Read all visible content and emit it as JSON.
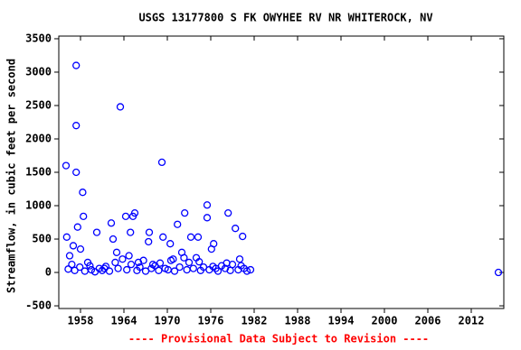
{
  "chart_data": {
    "type": "scatter",
    "title": "USGS 13177800 S FK OWYHEE RV NR WHITEROCK, NV",
    "y_label": "Streamflow, in cubic feet per second",
    "footer": "---- Provisional Data Subject to Revision ----",
    "color": "#0000ff",
    "xlim": [
      1955,
      2016.5
    ],
    "ylim": [
      -540,
      3540
    ],
    "xticks": [
      1958,
      1964,
      1970,
      1976,
      1982,
      1988,
      1994,
      2000,
      2006,
      2012
    ],
    "yticks": [
      -500,
      0,
      500,
      1000,
      1500,
      2000,
      2500,
      3000,
      3500
    ],
    "x": [
      1956.0,
      1957.4,
      1957.4,
      1957.4,
      1958.3,
      1963.5,
      1969.25,
      1958.4,
      1957.6,
      1956.1,
      1965.5,
      1965.25,
      1964.25,
      1962.25,
      1967.5,
      1969.4,
      1971.4,
      1972.4,
      1975.5,
      1975.5,
      1978.4,
      1979.4,
      1980.4,
      1973.25,
      1974.25,
      1976.4,
      1960.25,
      1970.4,
      1967.4,
      1962.5,
      1964.9,
      1956.3,
      1956.8,
      1957.2,
      1957.9,
      1958.6,
      1959.0,
      1959.5,
      1960.0,
      1960.6,
      1961.0,
      1961.5,
      1962.0,
      1962.8,
      1963.2,
      1963.8,
      1964.4,
      1965.0,
      1965.8,
      1966.2,
      1966.7,
      1967.0,
      1967.8,
      1968.3,
      1968.8,
      1969.0,
      1969.7,
      1970.1,
      1970.8,
      1971.0,
      1971.7,
      1972.0,
      1972.7,
      1973.0,
      1973.6,
      1974.0,
      1974.6,
      1975.0,
      1975.8,
      1976.1,
      1976.7,
      1977.0,
      1977.5,
      1978.0,
      1978.7,
      1979.0,
      1979.8,
      1980.0,
      1980.6,
      1981.0,
      1981.5,
      1956.5,
      1957.0,
      1958.0,
      1959.3,
      1961.3,
      1963.0,
      1964.7,
      1966.0,
      1968.0,
      1970.5,
      1972.3,
      1974.4,
      1976.3,
      1978.2,
      1980.2,
      2015.75
    ],
    "values": [
      1600,
      3100,
      2200,
      1500,
      1200,
      2480,
      1650,
      840,
      680,
      530,
      890,
      840,
      840,
      740,
      600,
      530,
      720,
      890,
      1010,
      820,
      890,
      660,
      540,
      530,
      530,
      430,
      600,
      430,
      460,
      500,
      600,
      50,
      120,
      30,
      80,
      20,
      150,
      40,
      10,
      60,
      30,
      90,
      20,
      150,
      60,
      200,
      40,
      120,
      30,
      80,
      180,
      20,
      60,
      100,
      30,
      140,
      60,
      40,
      200,
      20,
      80,
      300,
      40,
      150,
      60,
      220,
      30,
      80,
      40,
      350,
      60,
      20,
      100,
      60,
      30,
      120,
      40,
      200,
      60,
      20,
      40,
      250,
      400,
      350,
      100,
      60,
      300,
      250,
      150,
      120,
      180,
      220,
      160,
      90,
      140,
      100,
      0
    ]
  }
}
